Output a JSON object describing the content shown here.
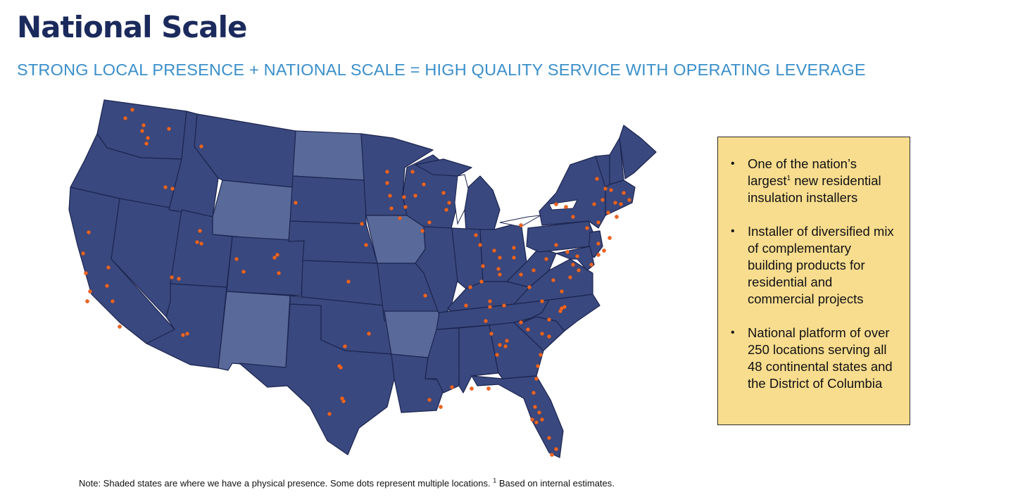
{
  "header": {
    "title": "National Scale",
    "subtitle": "STRONG LOCAL PRESENCE + NATIONAL SCALE = HIGH QUALITY SERVICE WITH OPERATING LEVERAGE"
  },
  "map": {
    "colors": {
      "presence_state": "#39487e",
      "no_presence_state": "#58699a",
      "state_border": "#1c2550",
      "location_dot": "#f26522"
    },
    "states_without_physical_presence": [
      "Wyoming",
      "North Dakota",
      "Iowa",
      "New Mexico",
      "Arkansas"
    ]
  },
  "callout": {
    "background": "#f8dd8f",
    "bullets": [
      {
        "before_sup": "One of the nation’s largest",
        "sup": "1",
        "after_sup": " new residential insulation installers"
      },
      {
        "text": "Installer of diversified mix of complementary building products for residential and commercial projects"
      },
      {
        "text": "National platform of over 250 locations serving all 48 continental states and the District of Columbia"
      }
    ]
  },
  "footnote": {
    "text": "Note: Shaded states are where we have a physical presence. Some dots represent multiple locations. ",
    "sup": "1",
    "after_sup": " Based on internal estimates."
  }
}
